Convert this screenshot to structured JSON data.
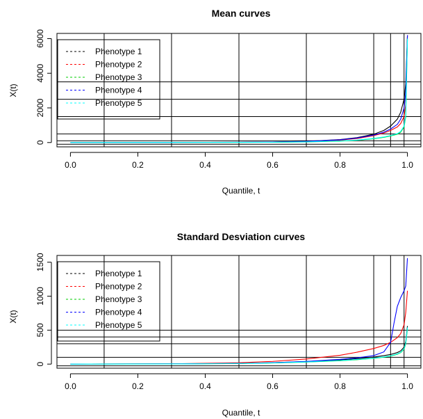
{
  "chart_data": [
    {
      "type": "line",
      "title": "Mean curves",
      "xlabel": "Quantile, t",
      "ylabel": "X(t)",
      "xlim": [
        -0.04,
        1.04
      ],
      "ylim": [
        -250,
        6300
      ],
      "xticks": [
        0.0,
        0.2,
        0.4,
        0.6,
        0.8,
        1.0
      ],
      "xtick_labels": [
        "0.0",
        "0.2",
        "0.4",
        "0.6",
        "0.8",
        "1.0"
      ],
      "yticks": [
        0,
        2000,
        4000,
        6000
      ],
      "ytick_labels": [
        "0",
        "2000",
        "4000",
        "6000"
      ],
      "vlines": [
        0.1,
        0.3,
        0.5,
        0.7,
        0.9,
        0.95,
        0.99
      ],
      "hlines": [
        -100,
        100,
        500,
        1500,
        2500,
        3500
      ],
      "legend_position": "top-left",
      "legend": [
        {
          "label": "Phenotype 1",
          "color": "#000000"
        },
        {
          "label": "Phenotype 2",
          "color": "#ff0000"
        },
        {
          "label": "Phenotype 3",
          "color": "#00cd00"
        },
        {
          "label": "Phenotype 4",
          "color": "#0000ff"
        },
        {
          "label": "Phenotype 5",
          "color": "#00ffff"
        }
      ],
      "series": [
        {
          "color": "#000000",
          "x": [
            0.0,
            0.3,
            0.5,
            0.6,
            0.7,
            0.8,
            0.85,
            0.9,
            0.93,
            0.95,
            0.97,
            0.98,
            0.99,
            0.995,
            1.0
          ],
          "y": [
            0,
            5,
            15,
            30,
            70,
            170,
            280,
            480,
            700,
            950,
            1350,
            1750,
            2500,
            3400,
            6200
          ]
        },
        {
          "color": "#ff0000",
          "x": [
            0.0,
            0.3,
            0.5,
            0.6,
            0.7,
            0.8,
            0.85,
            0.9,
            0.93,
            0.95,
            0.97,
            0.98,
            0.99,
            0.995,
            1.0
          ],
          "y": [
            0,
            3,
            10,
            22,
            55,
            140,
            230,
            400,
            550,
            700,
            900,
            1100,
            1500,
            2200,
            6200
          ]
        },
        {
          "color": "#00cd00",
          "x": [
            0.0,
            0.3,
            0.5,
            0.6,
            0.7,
            0.8,
            0.85,
            0.9,
            0.93,
            0.95,
            0.97,
            0.98,
            0.99,
            0.995,
            1.0
          ],
          "y": [
            0,
            2,
            6,
            14,
            35,
            80,
            130,
            220,
            300,
            380,
            480,
            600,
            900,
            1500,
            6000
          ]
        },
        {
          "color": "#0000ff",
          "x": [
            0.0,
            0.3,
            0.5,
            0.6,
            0.7,
            0.8,
            0.85,
            0.9,
            0.93,
            0.95,
            0.97,
            0.98,
            0.99,
            0.995,
            1.0
          ],
          "y": [
            0,
            5,
            14,
            28,
            65,
            160,
            260,
            430,
            600,
            780,
            1050,
            1350,
            2000,
            2900,
            6200
          ]
        },
        {
          "color": "#00ffff",
          "x": [
            0.0,
            0.3,
            0.5,
            0.6,
            0.7,
            0.8,
            0.85,
            0.9,
            0.93,
            0.95,
            0.97,
            0.98,
            0.99,
            0.995,
            1.0
          ],
          "y": [
            0,
            2,
            7,
            16,
            38,
            88,
            140,
            235,
            320,
            400,
            510,
            640,
            950,
            1600,
            6000
          ]
        }
      ]
    },
    {
      "type": "line",
      "title": "Standard Desviation curves",
      "xlabel": "Quantile, t",
      "ylabel": "X(t)",
      "xlim": [
        -0.04,
        1.04
      ],
      "ylim": [
        -60,
        1600
      ],
      "xticks": [
        0.0,
        0.2,
        0.4,
        0.6,
        0.8,
        1.0
      ],
      "xtick_labels": [
        "0.0",
        "0.2",
        "0.4",
        "0.6",
        "0.8",
        "1.0"
      ],
      "yticks": [
        0,
        500,
        1000,
        1500
      ],
      "ytick_labels": [
        "0",
        "500",
        "1000",
        "1500"
      ],
      "vlines": [
        0.1,
        0.3,
        0.5,
        0.7,
        0.9,
        0.95,
        0.99
      ],
      "hlines": [
        -25,
        100,
        300,
        400,
        500
      ],
      "legend_position": "top-left",
      "legend": [
        {
          "label": "Phenotype 1",
          "color": "#000000"
        },
        {
          "label": "Phenotype 2",
          "color": "#ff0000"
        },
        {
          "label": "Phenotype 3",
          "color": "#00cd00"
        },
        {
          "label": "Phenotype 4",
          "color": "#0000ff"
        },
        {
          "label": "Phenotype 5",
          "color": "#00ffff"
        }
      ],
      "series": [
        {
          "color": "#000000",
          "x": [
            0.0,
            0.3,
            0.5,
            0.6,
            0.7,
            0.8,
            0.85,
            0.9,
            0.93,
            0.95,
            0.97,
            0.98,
            0.99,
            0.995,
            1.0
          ],
          "y": [
            0,
            3,
            10,
            20,
            38,
            62,
            80,
            105,
            125,
            142,
            170,
            195,
            250,
            330,
            560
          ]
        },
        {
          "color": "#ff0000",
          "x": [
            0.0,
            0.3,
            0.5,
            0.6,
            0.7,
            0.8,
            0.85,
            0.9,
            0.93,
            0.95,
            0.97,
            0.98,
            0.99,
            0.995,
            1.0
          ],
          "y": [
            0,
            4,
            20,
            40,
            75,
            130,
            175,
            230,
            275,
            320,
            390,
            450,
            580,
            760,
            1080
          ]
        },
        {
          "color": "#00cd00",
          "x": [
            0.0,
            0.3,
            0.5,
            0.6,
            0.7,
            0.8,
            0.85,
            0.9,
            0.93,
            0.95,
            0.97,
            0.98,
            0.99,
            0.995,
            1.0
          ],
          "y": [
            0,
            2,
            8,
            16,
            30,
            50,
            65,
            85,
            102,
            118,
            145,
            170,
            220,
            300,
            520
          ]
        },
        {
          "color": "#0000ff",
          "x": [
            0.0,
            0.3,
            0.5,
            0.6,
            0.7,
            0.8,
            0.85,
            0.9,
            0.93,
            0.95,
            0.96,
            0.97,
            0.98,
            0.99,
            0.995,
            1.0
          ],
          "y": [
            0,
            3,
            10,
            20,
            40,
            70,
            92,
            125,
            180,
            320,
            600,
            850,
            980,
            1080,
            1150,
            1560
          ]
        },
        {
          "color": "#00ffff",
          "x": [
            0.0,
            0.3,
            0.5,
            0.6,
            0.7,
            0.8,
            0.85,
            0.9,
            0.93,
            0.95,
            0.97,
            0.98,
            0.99,
            0.995,
            1.0
          ],
          "y": [
            0,
            2,
            8,
            17,
            32,
            52,
            68,
            88,
            106,
            122,
            150,
            175,
            228,
            310,
            540
          ]
        }
      ]
    }
  ]
}
